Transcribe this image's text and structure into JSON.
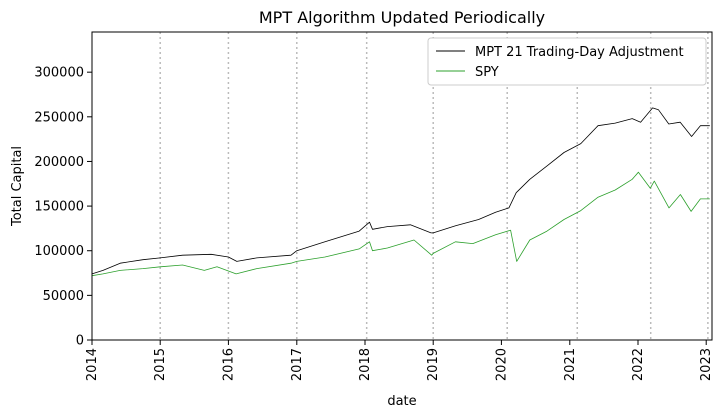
{
  "chart_data": {
    "type": "line",
    "title": "MPT Algorithm Updated Periodically",
    "xlabel": "date",
    "ylabel": "Total Capital",
    "xlim": [
      "2014-01-01",
      "2023-02-01"
    ],
    "ylim": [
      0,
      345000
    ],
    "x_ticks": [
      "2014",
      "2015",
      "2016",
      "2017",
      "2018",
      "2019",
      "2020",
      "2021",
      "2022",
      "2023"
    ],
    "y_ticks": [
      "0",
      "50000",
      "100000",
      "150000",
      "200000",
      "250000",
      "300000"
    ],
    "rebalance_lines": [
      "2015-01-01",
      "2016-01-01",
      "2017-01-01",
      "2018-01-10",
      "2019-01-01",
      "2020-02-01",
      "2021-02-10",
      "2022-03-10",
      "2023-01-10"
    ],
    "legend_position": "top-right",
    "grid": false,
    "series": [
      {
        "name": "MPT 21 Trading-Day Adjustment",
        "color": "#000000",
        "points": [
          [
            "2014-01-01",
            74000
          ],
          [
            "2014-03-01",
            78000
          ],
          [
            "2014-06-01",
            86000
          ],
          [
            "2014-10-01",
            90000
          ],
          [
            "2015-01-01",
            92000
          ],
          [
            "2015-05-01",
            95000
          ],
          [
            "2015-10-01",
            96000
          ],
          [
            "2016-01-01",
            93000
          ],
          [
            "2016-02-15",
            88000
          ],
          [
            "2016-06-01",
            92000
          ],
          [
            "2016-12-01",
            95000
          ],
          [
            "2017-01-01",
            100000
          ],
          [
            "2017-06-01",
            110000
          ],
          [
            "2017-12-01",
            122000
          ],
          [
            "2018-01-25",
            132000
          ],
          [
            "2018-02-10",
            124000
          ],
          [
            "2018-05-01",
            127000
          ],
          [
            "2018-09-01",
            129000
          ],
          [
            "2018-12-20",
            120000
          ],
          [
            "2019-01-01",
            120000
          ],
          [
            "2019-05-01",
            128000
          ],
          [
            "2019-09-01",
            135000
          ],
          [
            "2019-12-01",
            143000
          ],
          [
            "2020-02-10",
            148000
          ],
          [
            "2020-03-20",
            165000
          ],
          [
            "2020-06-01",
            180000
          ],
          [
            "2020-09-01",
            195000
          ],
          [
            "2020-12-01",
            210000
          ],
          [
            "2021-03-01",
            220000
          ],
          [
            "2021-06-01",
            240000
          ],
          [
            "2021-09-01",
            243000
          ],
          [
            "2021-12-01",
            248000
          ],
          [
            "2022-01-15",
            244000
          ],
          [
            "2022-03-20",
            260000
          ],
          [
            "2022-04-20",
            258000
          ],
          [
            "2022-06-15",
            242000
          ],
          [
            "2022-08-15",
            244000
          ],
          [
            "2022-10-15",
            228000
          ],
          [
            "2022-12-01",
            240000
          ],
          [
            "2023-01-20",
            240000
          ]
        ]
      },
      {
        "name": "SPY",
        "color": "#2ca02c",
        "points": [
          [
            "2014-01-01",
            72000
          ],
          [
            "2014-03-01",
            74000
          ],
          [
            "2014-06-01",
            78000
          ],
          [
            "2014-10-01",
            80000
          ],
          [
            "2015-01-01",
            82000
          ],
          [
            "2015-05-01",
            84000
          ],
          [
            "2015-08-25",
            78000
          ],
          [
            "2015-11-01",
            82000
          ],
          [
            "2016-02-11",
            74000
          ],
          [
            "2016-06-01",
            80000
          ],
          [
            "2016-12-01",
            86000
          ],
          [
            "2017-01-01",
            88000
          ],
          [
            "2017-06-01",
            93000
          ],
          [
            "2017-12-01",
            102000
          ],
          [
            "2018-01-25",
            110000
          ],
          [
            "2018-02-10",
            100000
          ],
          [
            "2018-05-01",
            103000
          ],
          [
            "2018-09-20",
            112000
          ],
          [
            "2018-12-24",
            95000
          ],
          [
            "2019-01-01",
            97000
          ],
          [
            "2019-04-30",
            110000
          ],
          [
            "2019-08-01",
            108000
          ],
          [
            "2019-12-01",
            118000
          ],
          [
            "2020-02-19",
            123000
          ],
          [
            "2020-03-23",
            88000
          ],
          [
            "2020-06-01",
            112000
          ],
          [
            "2020-09-01",
            122000
          ],
          [
            "2020-12-01",
            135000
          ],
          [
            "2021-03-01",
            145000
          ],
          [
            "2021-06-01",
            160000
          ],
          [
            "2021-09-01",
            168000
          ],
          [
            "2021-12-01",
            180000
          ],
          [
            "2022-01-03",
            188000
          ],
          [
            "2022-03-08",
            170000
          ],
          [
            "2022-03-29",
            178000
          ],
          [
            "2022-06-16",
            148000
          ],
          [
            "2022-08-16",
            163000
          ],
          [
            "2022-10-12",
            144000
          ],
          [
            "2022-12-01",
            158000
          ],
          [
            "2023-01-20",
            158000
          ]
        ]
      }
    ]
  }
}
